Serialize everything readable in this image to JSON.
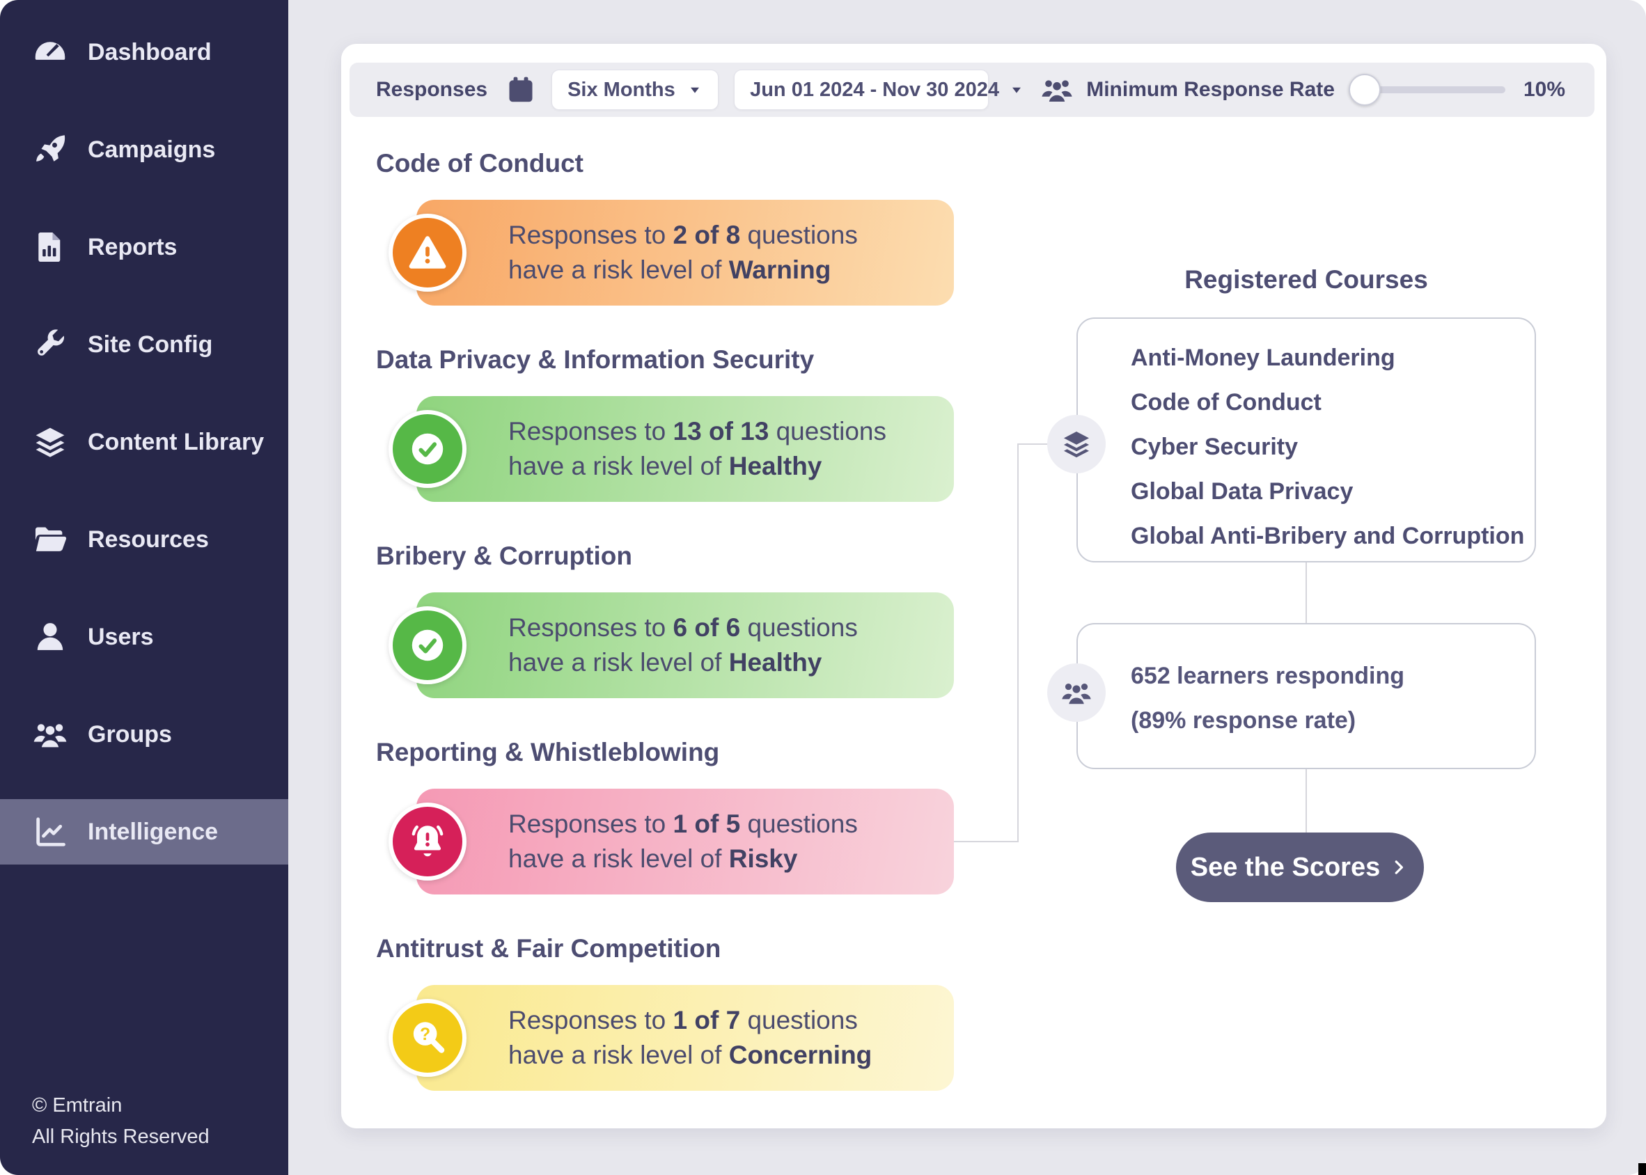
{
  "sidebar": {
    "items": [
      {
        "label": "Dashboard",
        "icon": "gauge-icon",
        "active": false
      },
      {
        "label": "Campaigns",
        "icon": "rocket-icon",
        "active": false
      },
      {
        "label": "Reports",
        "icon": "report-icon",
        "active": false
      },
      {
        "label": "Site Config",
        "icon": "wrench-icon",
        "active": false
      },
      {
        "label": "Content Library",
        "icon": "layers-icon",
        "active": false
      },
      {
        "label": "Resources",
        "icon": "folder-icon",
        "active": false
      },
      {
        "label": "Users",
        "icon": "user-icon",
        "active": false
      },
      {
        "label": "Groups",
        "icon": "people-icon",
        "active": false
      },
      {
        "label": "Intelligence",
        "icon": "chart-line-icon",
        "active": true
      }
    ],
    "copyright": "© Emtrain",
    "rights": "All Rights Reserved"
  },
  "toolbar": {
    "responses_label": "Responses",
    "calendar_icon": "calendar-icon",
    "period_value": "Six Months",
    "range_value": "Jun 01 2024 - Nov 30 2024",
    "people_icon": "people-icon",
    "min_rate_label": "Minimum Response Rate",
    "min_rate_value": "10%"
  },
  "levels": {
    "warning": {
      "circle": "#ee8022",
      "gradient_from": "#f8a765",
      "gradient_to": "#fcddb0"
    },
    "healthy": {
      "circle": "#56b847",
      "gradient_from": "#8fd47e",
      "gradient_to": "#daf0cf"
    },
    "risky": {
      "circle": "#d62059",
      "gradient_from": "#f599b4",
      "gradient_to": "#f8d3dc"
    },
    "concerning": {
      "circle": "#f3cb17",
      "gradient_from": "#fae98f",
      "gradient_to": "#fdf6d3"
    }
  },
  "risk_sections": [
    {
      "title": "Code of Conduct",
      "level": "warning",
      "icon": "warning-triangle-icon",
      "text_prefix": "Responses to ",
      "count": "2 of 8",
      "text_mid": " questions",
      "line2_prefix": "have a risk level of ",
      "risk": "Warning"
    },
    {
      "title": "Data Privacy & Information Security",
      "level": "healthy",
      "icon": "check-circle-icon",
      "text_prefix": "Responses to ",
      "count": "13 of 13",
      "text_mid": " questions",
      "line2_prefix": "have a risk level of ",
      "risk": "Healthy"
    },
    {
      "title": "Bribery & Corruption",
      "level": "healthy",
      "icon": "check-circle-icon",
      "text_prefix": "Responses to ",
      "count": "6 of 6",
      "text_mid": " questions",
      "line2_prefix": "have a risk level of ",
      "risk": "Healthy"
    },
    {
      "title": "Reporting & Whistleblowing",
      "level": "risky",
      "icon": "bell-alert-icon",
      "text_prefix": "Responses to ",
      "count": "1 of 5",
      "text_mid": " questions",
      "line2_prefix": "have a risk level of ",
      "risk": "Risky"
    },
    {
      "title": "Antitrust & Fair Competition",
      "level": "concerning",
      "icon": "search-question-icon",
      "text_prefix": "Responses to ",
      "count": "1 of 7",
      "text_mid": " questions",
      "line2_prefix": "have a risk level of ",
      "risk": "Concerning"
    }
  ],
  "courses": {
    "title": "Registered Courses",
    "icon": "layers-icon",
    "items": [
      "Anti-Money Laundering",
      "Code of Conduct",
      "Cyber Security",
      "Global Data Privacy",
      "Global Anti-Bribery and Corruption"
    ]
  },
  "learners": {
    "icon": "people-icon",
    "line1": "652 learners responding",
    "line2": "(89% response rate)"
  },
  "cta": {
    "label": "See the Scores",
    "icon": "chevron-right-icon"
  }
}
